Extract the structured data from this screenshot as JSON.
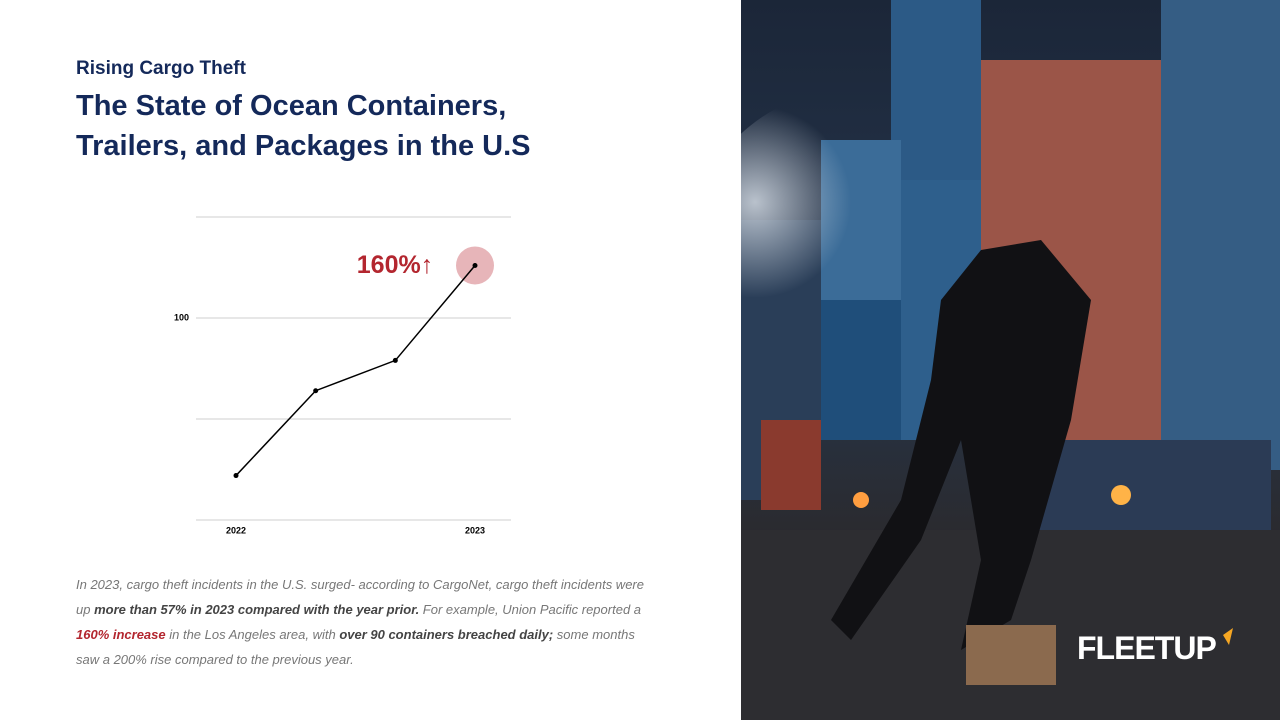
{
  "kicker": "Rising Cargo Theft",
  "title": "The State of Ocean Containers, Trailers, and Packages in the U.S",
  "body": [
    "In 2023, cargo theft incidents in the U.S. surged- according to CargoNet, cargo theft incidents were up ",
    "more than 57% in 2023 compared with the year prior.",
    " For example, Union Pacific reported a ",
    "160% increase",
    " in the Los Angeles area, with ",
    "over 90 containers breached daily;",
    " some months saw a 200% rise compared to the previous year."
  ],
  "logo": "FLEETUP",
  "chart_data": {
    "type": "line",
    "categories": [
      "2022",
      null,
      null,
      "2023"
    ],
    "values": [
      22,
      64,
      79,
      126
    ],
    "color": "#000000",
    "ylim": [
      0,
      150
    ],
    "yticks": [
      100
    ],
    "ygrid": [
      0,
      50,
      100,
      150
    ],
    "annotation": "160%↑",
    "highlight_color": "#e7b5b9",
    "annotation_color": "#b3262f"
  }
}
